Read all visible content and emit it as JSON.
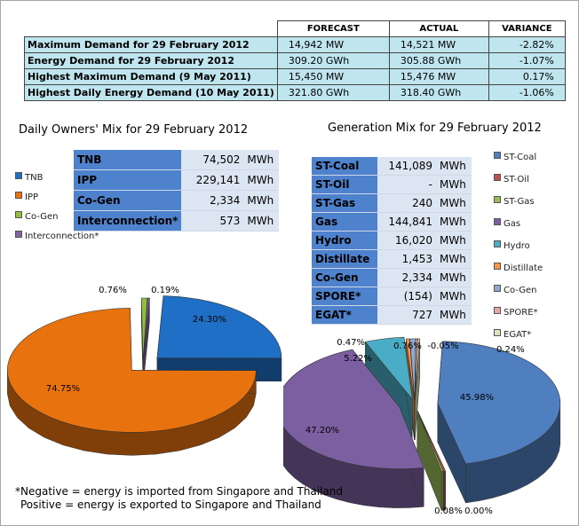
{
  "summary": {
    "headers": [
      "FORECAST",
      "ACTUAL",
      "VARIANCE"
    ],
    "rows": [
      {
        "label": "Maximum Demand for 29 February 2012",
        "forecast": "14,942  MW",
        "actual": "14,521  MW",
        "variance": "-2.82%"
      },
      {
        "label": "Energy Demand for 29 February 2012",
        "forecast": "309.20  GWh",
        "actual": "305.88  GWh",
        "variance": "-1.07%"
      },
      {
        "label": "Highest Maximum Demand (9 May 2011)",
        "forecast": "15,450  MW",
        "actual": "15,476  MW",
        "variance": "0.17%"
      },
      {
        "label": "Highest Daily Energy Demand (10 May 2011)",
        "forecast": "321.80  GWh",
        "actual": "318.40  GWh",
        "variance": "-1.06%"
      }
    ]
  },
  "owners": {
    "title": "Daily Owners' Mix for 29 February 2012",
    "rows": [
      {
        "name": "TNB",
        "value": "74,502",
        "unit": "MWh"
      },
      {
        "name": "IPP",
        "value": "229,141",
        "unit": "MWh"
      },
      {
        "name": "Co-Gen",
        "value": "2,334",
        "unit": "MWh"
      },
      {
        "name": "Interconnection*",
        "value": "573",
        "unit": "MWh"
      }
    ],
    "legend": [
      "TNB",
      "IPP",
      "Co-Gen",
      "Interconnection*"
    ]
  },
  "generation": {
    "title": "Generation Mix for 29 February 2012",
    "rows": [
      {
        "name": "ST-Coal",
        "value": "141,089",
        "unit": "MWh"
      },
      {
        "name": "ST-Oil",
        "value": "-",
        "unit": "MWh"
      },
      {
        "name": "ST-Gas",
        "value": "240",
        "unit": "MWh"
      },
      {
        "name": "Gas",
        "value": "144,841",
        "unit": "MWh"
      },
      {
        "name": "Hydro",
        "value": "16,020",
        "unit": "MWh"
      },
      {
        "name": "Distillate",
        "value": "1,453",
        "unit": "MWh"
      },
      {
        "name": "Co-Gen",
        "value": "2,334",
        "unit": "MWh"
      },
      {
        "name": "SPORE*",
        "value": "(154)",
        "unit": "MWh"
      },
      {
        "name": "EGAT*",
        "value": "727",
        "unit": "MWh"
      }
    ],
    "legend": [
      "ST-Coal",
      "ST-Oil",
      "ST-Gas",
      "Gas",
      "Hydro",
      "Distillate",
      "Co-Gen",
      "SPORE*",
      "EGAT*"
    ]
  },
  "note": {
    "line1": "*Negative = energy is imported from Singapore and Thailand",
    "line2": "Positive = energy is exported to Singapore and Thailand"
  },
  "chart_data": [
    {
      "type": "pie",
      "title": "Daily Owners' Mix for 29 February 2012",
      "categories": [
        "TNB",
        "IPP",
        "Co-Gen",
        "Interconnection*"
      ],
      "values": [
        24.3,
        74.75,
        0.76,
        0.19
      ],
      "labels": [
        "24.30%",
        "74.75%",
        "0.76%",
        "0.19%"
      ],
      "colors": [
        "#1f6fc6",
        "#e8730e",
        "#8fbf3c",
        "#8064a2"
      ]
    },
    {
      "type": "pie",
      "title": "Generation Mix for 29 February 2012",
      "categories": [
        "ST-Coal",
        "ST-Oil",
        "ST-Gas",
        "Gas",
        "Hydro",
        "Distillate",
        "Co-Gen",
        "SPORE*",
        "EGAT*"
      ],
      "values": [
        45.98,
        0.0,
        0.08,
        47.2,
        5.22,
        0.47,
        0.76,
        -0.05,
        0.24
      ],
      "labels": [
        "45.98%",
        "0.00%",
        "0.08%",
        "47.20%",
        "5.22%",
        "0.47%",
        "0.76%",
        "-0.05%",
        "0.24%"
      ],
      "colors": [
        "#4f7fbf",
        "#c0504d",
        "#9bbb59",
        "#7b5fa0",
        "#4bacc6",
        "#f79646",
        "#92a9cf",
        "#e8a9a0",
        "#d8e4bc"
      ]
    }
  ]
}
